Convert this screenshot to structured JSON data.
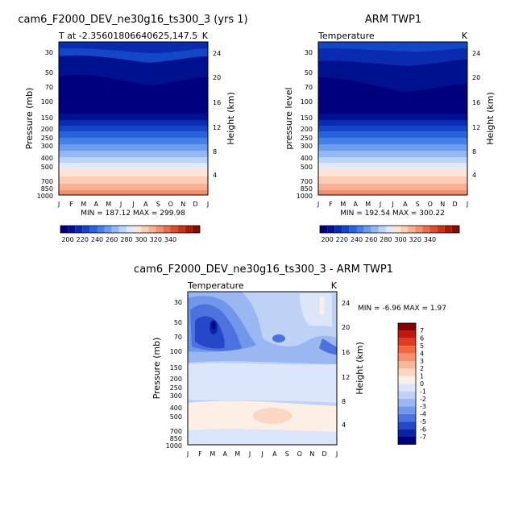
{
  "chart_data": [
    {
      "type": "heatmap",
      "title": "cam6_F2000_DEV_ne30g16_ts300_3 (yrs 1)",
      "subtitle_left": "T at -2.35601806640625,147.5",
      "subtitle_right": "K",
      "ylabel": "Pressure (mb)",
      "ylabel_right": "Height (km)",
      "x_ticks": [
        "J",
        "F",
        "M",
        "A",
        "M",
        "J",
        "J",
        "A",
        "S",
        "O",
        "N",
        "D",
        "J"
      ],
      "y_ticks": [
        "30",
        "50",
        "70",
        "100",
        "150",
        "200",
        "250",
        "300",
        "400",
        "500",
        "700",
        "850",
        "1000"
      ],
      "height_ticks": [
        "24",
        "20",
        "16",
        "12",
        "8",
        "4"
      ],
      "stats": "MIN = 187.12  MAX = 299.98",
      "colorbar_labels": [
        "200",
        "220",
        "240",
        "260",
        "280",
        "300",
        "320",
        "340"
      ]
    },
    {
      "type": "heatmap",
      "title": "ARM TWP1",
      "subtitle_left": "Temperature",
      "subtitle_right": "K",
      "ylabel": "pressure level",
      "ylabel_right": "Height (km)",
      "x_ticks": [
        "J",
        "F",
        "M",
        "A",
        "M",
        "J",
        "J",
        "A",
        "S",
        "O",
        "N",
        "D",
        "J"
      ],
      "y_ticks": [
        "30",
        "50",
        "70",
        "100",
        "150",
        "200",
        "250",
        "300",
        "400",
        "500",
        "700",
        "850",
        "1000"
      ],
      "height_ticks": [
        "24",
        "20",
        "16",
        "12",
        "8",
        "4"
      ],
      "stats": "MIN = 192.54  MAX = 300.22",
      "colorbar_labels": [
        "200",
        "220",
        "240",
        "260",
        "280",
        "300",
        "320",
        "340"
      ]
    },
    {
      "type": "heatmap",
      "title": "cam6_F2000_DEV_ne30g16_ts300_3 - ARM TWP1",
      "subtitle_left": "Temperature",
      "subtitle_right": "K",
      "ylabel": "Pressure (mb)",
      "ylabel_right": "Height (km)",
      "x_ticks": [
        "J",
        "F",
        "M",
        "A",
        "M",
        "J",
        "J",
        "A",
        "S",
        "O",
        "N",
        "D",
        "J"
      ],
      "y_ticks": [
        "30",
        "50",
        "70",
        "100",
        "150",
        "200",
        "250",
        "300",
        "400",
        "500",
        "700",
        "850",
        "1000"
      ],
      "height_ticks": [
        "24",
        "20",
        "16",
        "12",
        "8",
        "4"
      ],
      "stats": "MIN =   -6.96 MAX =    1.97",
      "colorbar_labels": [
        "7",
        "6",
        "5",
        "4",
        "3",
        "2",
        "1",
        "0",
        "-1",
        "-2",
        "-3",
        "-4",
        "-5",
        "-6",
        "-7"
      ]
    }
  ],
  "colors": {
    "abs_scale": [
      "#00007f",
      "#001190",
      "#0a2bb0",
      "#1446c8",
      "#2a62da",
      "#4480e6",
      "#6a9cf0",
      "#94b8f5",
      "#bcd4fa",
      "#dfeafc",
      "#fde6d8",
      "#fbcdb4",
      "#f7b092",
      "#f09270",
      "#e6704d",
      "#d8502e",
      "#c63418",
      "#aa1a08",
      "#8a0a02"
    ],
    "diff_scale": [
      "#8b0000",
      "#c1170f",
      "#e33b1e",
      "#f2673e",
      "#f7916d",
      "#fab69a",
      "#fcd5c3",
      "#fdefe6",
      "#dbe6fa",
      "#bed2f6",
      "#9ab7f1",
      "#7297ea",
      "#4b72de",
      "#2448c8",
      "#0a22a8",
      "#00007f"
    ]
  }
}
